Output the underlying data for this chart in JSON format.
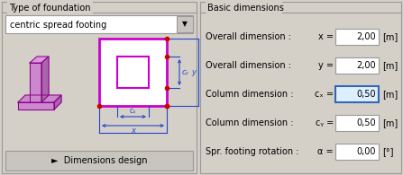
{
  "bg_color": "#d4d0c8",
  "panel_bg": "#d4d0c8",
  "white": "#ffffff",
  "left_panel_title": "Type of foundation",
  "right_panel_title": "Basic dimensions",
  "dropdown_text": "centric spread footing",
  "button_text": "►  Dimensions design",
  "fs_main": 7.0,
  "rows": [
    {
      "label": "Overall dimension :",
      "var": "x =",
      "value": "2,00",
      "unit": "[m]",
      "highlight": false
    },
    {
      "label": "Overall dimension :",
      "var": "y =",
      "value": "2,00",
      "unit": "[m]",
      "highlight": false
    },
    {
      "label": "Column dimension :",
      "var": "cₓ =",
      "value": "0,50",
      "unit": "[m]",
      "highlight": true
    },
    {
      "label": "Column dimension :",
      "var": "cᵧ =",
      "value": "0,50",
      "unit": "[m]",
      "highlight": false
    },
    {
      "label": "Spr. footing rotation :",
      "var": "α =",
      "value": "0,00",
      "unit": "[°]",
      "highlight": false
    }
  ],
  "magenta": "#cc00cc",
  "blue": "#2244cc",
  "red": "#cc0000",
  "gray_border": "#999999",
  "highlight_border": "#3366bb",
  "highlight_fill": "#ddeeff"
}
